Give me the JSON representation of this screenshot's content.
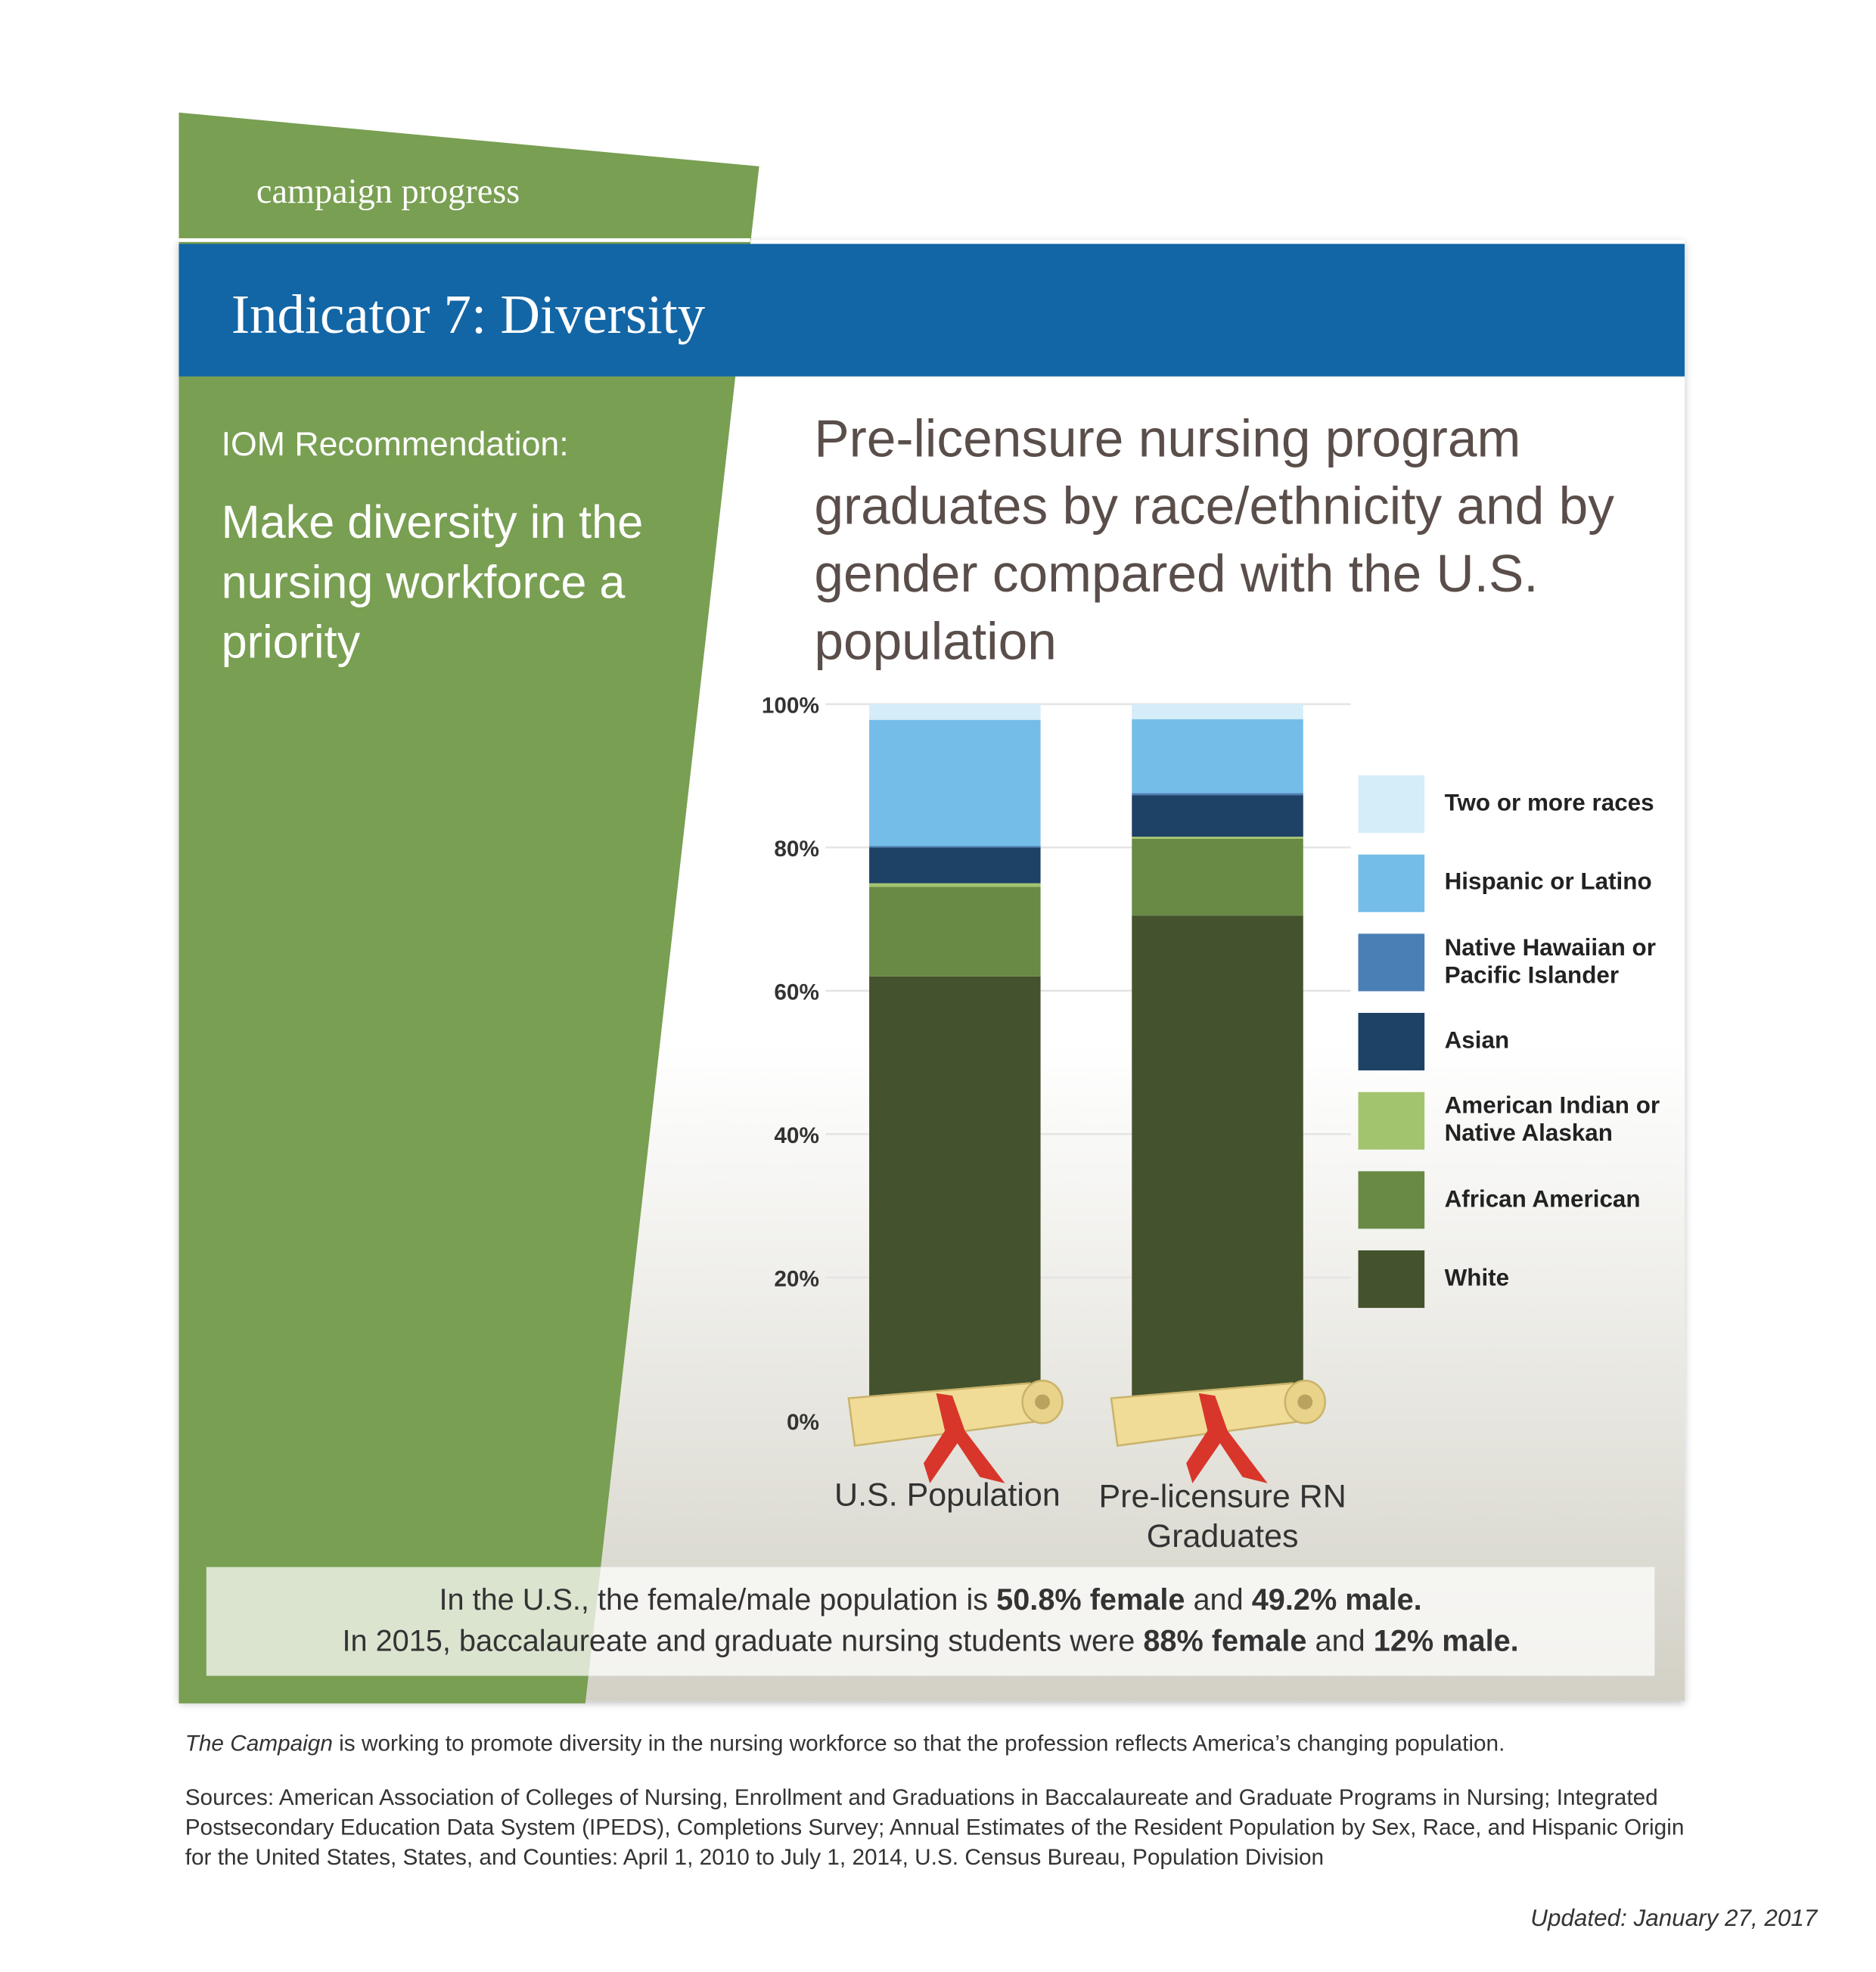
{
  "header": {
    "tag": "campaign progress",
    "title": "Indicator 7: Diversity"
  },
  "recommendation": {
    "label": "IOM Recommendation:",
    "text": "Make diversity in the nursing workforce a priority"
  },
  "chart_data": {
    "type": "stacked_bar",
    "title": "Pre-licensure nursing program graduates by race/ethnicity and by gender compared with the U.S. population",
    "categories": [
      "U.S. Population",
      "Pre-licensure RN Graduates"
    ],
    "series": [
      {
        "name": "White",
        "color": "#44532d",
        "values": [
          62,
          70.5
        ]
      },
      {
        "name": "African American",
        "color": "#698a45",
        "values": [
          12.5,
          10.7
        ]
      },
      {
        "name": "American Indian or Native Alaskan",
        "color": "#a3c46f",
        "values": [
          0.5,
          0.3
        ]
      },
      {
        "name": "Asian",
        "color": "#1e4166",
        "values": [
          5,
          5.8
        ]
      },
      {
        "name": "Native Hawaiian or Pacific Islander",
        "color": "#4a7fb5",
        "values": [
          0.2,
          0.3
        ]
      },
      {
        "name": "Hispanic or Latino",
        "color": "#74bde8",
        "values": [
          17.6,
          10.3
        ]
      },
      {
        "name": "Two or more races",
        "color": "#d5ecf9",
        "values": [
          2.2,
          2.1
        ]
      }
    ],
    "ylim": [
      0,
      100
    ],
    "yticks": [
      {
        "value": 0,
        "label": "0%"
      },
      {
        "value": 20,
        "label": "20%"
      },
      {
        "value": 40,
        "label": "40%"
      },
      {
        "value": 60,
        "label": "60%"
      },
      {
        "value": 80,
        "label": "80%"
      },
      {
        "value": 100,
        "label": "100%"
      }
    ],
    "grid": true
  },
  "gender_note": {
    "lines": [
      [
        {
          "text": "In the U.S., the female/male population is ",
          "bold": false
        },
        {
          "text": "50.8% female",
          "bold": true
        },
        {
          "text": " and ",
          "bold": false
        },
        {
          "text": "49.2% male.",
          "bold": true
        }
      ],
      [
        {
          "text": "In 2015, baccalaureate and graduate nursing students were ",
          "bold": false
        },
        {
          "text": "88% female",
          "bold": true
        },
        {
          "text": " and ",
          "bold": false
        },
        {
          "text": "12% male.",
          "bold": true
        }
      ]
    ]
  },
  "footer": {
    "statement": [
      {
        "text": "The Campaign",
        "italic": true
      },
      {
        "text": " is working to promote diversity in the nursing workforce so that the profession reflects America’s changing population.",
        "italic": false
      }
    ],
    "sources": "Sources: American Association of Colleges of Nursing, Enrollment and Graduations in Baccalaureate and Graduate Programs in Nursing; Integrated Postsecondary Education Data System (IPEDS), Completions Survey; Annual Estimates of the Resident Population by Sex, Race, and Hispanic Origin for the United States, States, and Counties: April 1, 2010 to July 1, 2014, U.S. Census Bureau, Population Division",
    "updated": "Updated: January 27, 2017"
  }
}
